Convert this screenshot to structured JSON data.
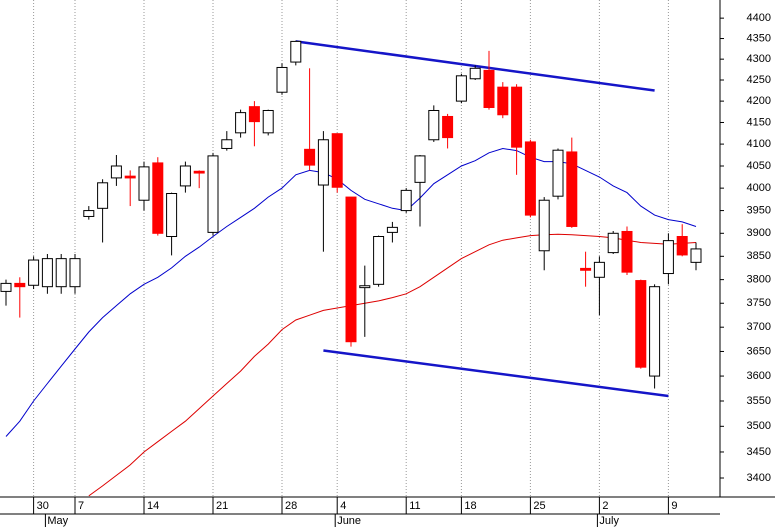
{
  "chart_data": {
    "type": "candlestick",
    "categories": [
      null,
      null,
      "30",
      null,
      null,
      "7",
      null,
      null,
      null,
      null,
      "14",
      null,
      null,
      null,
      null,
      "21",
      null,
      null,
      null,
      null,
      "28",
      null,
      null,
      null,
      "4",
      null,
      null,
      null,
      null,
      "11",
      null,
      null,
      null,
      "18",
      null,
      null,
      null,
      null,
      "25",
      null,
      null,
      null,
      null,
      "2",
      null,
      null,
      null,
      null,
      "9",
      null,
      null
    ],
    "months": [
      null,
      null,
      null,
      "May",
      null,
      null,
      null,
      null,
      null,
      null,
      null,
      null,
      null,
      null,
      null,
      null,
      null,
      null,
      null,
      null,
      null,
      null,
      null,
      null,
      "June",
      null,
      null,
      null,
      null,
      null,
      null,
      null,
      null,
      null,
      null,
      null,
      null,
      null,
      null,
      null,
      null,
      null,
      null,
      "July",
      null,
      null,
      null,
      null,
      null,
      null,
      null
    ],
    "open": [
      3775,
      3792,
      3788,
      3785,
      3785,
      3785,
      3937,
      3955,
      4023,
      4027,
      3973,
      4057,
      3893,
      4005,
      4038,
      3902,
      4090,
      4126,
      4187,
      4126,
      4221,
      4293,
      4088,
      4007,
      4124,
      3980,
      3783,
      3790,
      3902,
      3950,
      4013,
      4110,
      4164,
      4200,
      4253,
      4273,
      4233,
      4233,
      4105,
      3862,
      3982,
      4082,
      3824,
      3805,
      3858,
      3904,
      3798,
      3600,
      3813,
      3893,
      3837
    ],
    "high": [
      3800,
      3805,
      3850,
      3855,
      3855,
      3855,
      3960,
      4020,
      4075,
      4040,
      4060,
      4070,
      3990,
      4060,
      4040,
      4080,
      4130,
      4180,
      4200,
      4180,
      4290,
      4345,
      4278,
      4130,
      4125,
      3980,
      3830,
      3895,
      3925,
      4000,
      4075,
      4190,
      4170,
      4265,
      4285,
      4320,
      4245,
      4240,
      4110,
      3980,
      4090,
      4115,
      3860,
      3850,
      3905,
      3915,
      3800,
      3790,
      3900,
      3920,
      3880
    ],
    "low": [
      3745,
      3720,
      3780,
      3770,
      3770,
      3770,
      3930,
      3880,
      4005,
      3960,
      3950,
      3895,
      3852,
      3990,
      4000,
      3895,
      4085,
      4115,
      4095,
      4120,
      4215,
      4285,
      4040,
      3860,
      3990,
      3660,
      3680,
      3785,
      3880,
      3945,
      3915,
      4105,
      4090,
      4195,
      4250,
      4180,
      4160,
      4030,
      3935,
      3820,
      3975,
      3912,
      3785,
      3725,
      3855,
      3810,
      3615,
      3575,
      3790,
      3850,
      3820
    ],
    "close": [
      3792,
      3785,
      3842,
      3845,
      3845,
      3845,
      3950,
      4012,
      4050,
      4023,
      4048,
      3900,
      3988,
      4050,
      4034,
      4073,
      4110,
      4173,
      4152,
      4178,
      4280,
      4343,
      4052,
      4110,
      4002,
      3670,
      3787,
      3893,
      3913,
      3995,
      4073,
      4178,
      4115,
      4260,
      4278,
      4185,
      4168,
      4093,
      3940,
      3973,
      4086,
      3915,
      3820,
      3837,
      3900,
      3816,
      3618,
      3785,
      3884,
      3853,
      3866
    ],
    "up_color": "#ffffff",
    "down_color": "#ff0000",
    "series": [
      {
        "color": "#0000cc",
        "values": [
          3480,
          3510,
          3550,
          3585,
          3620,
          3655,
          3690,
          3720,
          3745,
          3770,
          3790,
          3805,
          3825,
          3850,
          3870,
          3893,
          3915,
          3935,
          3955,
          3980,
          4000,
          4030,
          4040,
          4035,
          4020,
          3995,
          3975,
          3965,
          3955,
          3950,
          3978,
          4010,
          4030,
          4050,
          4062,
          4080,
          4090,
          4085,
          4070,
          4060,
          4060,
          4055,
          4040,
          4025,
          4005,
          3990,
          3960,
          3940,
          3930,
          3925,
          3915
        ]
      },
      {
        "color": "#dd0000",
        "values": [
          null,
          null,
          null,
          null,
          null,
          null,
          3366,
          3385,
          3405,
          3425,
          3450,
          3470,
          3490,
          3510,
          3535,
          3560,
          3585,
          3610,
          3640,
          3665,
          3695,
          3715,
          3725,
          3735,
          3740,
          3745,
          3750,
          3755,
          3762,
          3770,
          3785,
          3805,
          3825,
          3845,
          3860,
          3875,
          3885,
          3890,
          3895,
          3897,
          3898,
          3897,
          3895,
          3893,
          3890,
          3885,
          3880,
          3878,
          3876,
          3878,
          3880
        ]
      }
    ],
    "trend_lines": [
      {
        "color": "#1515c8",
        "from": [
          21,
          4343
        ],
        "to": [
          47,
          4225
        ]
      },
      {
        "color": "#1515c8",
        "from": [
          23,
          3652
        ],
        "to": [
          48,
          3560
        ]
      }
    ],
    "ylim": [
      3364,
      4445
    ],
    "log_scale": true,
    "yticks": [
      3400,
      3450,
      3500,
      3550,
      3600,
      3650,
      3700,
      3750,
      3800,
      3850,
      3900,
      3950,
      4000,
      4050,
      4100,
      4150,
      4200,
      4250,
      4300,
      4350,
      4400
    ],
    "grid": true
  }
}
